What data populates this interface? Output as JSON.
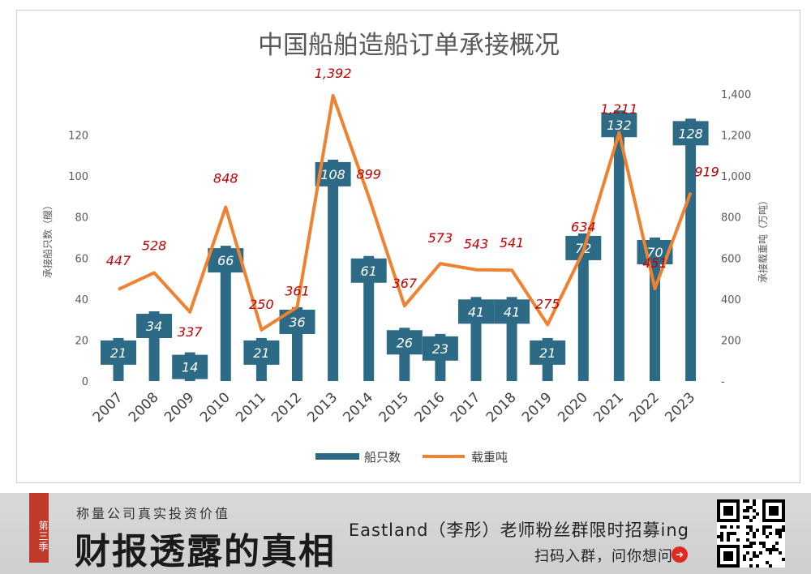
{
  "chart_data": {
    "type": "bar+line",
    "title": "中国船舶造船订单承接概况",
    "categories": [
      "2007",
      "2008",
      "2009",
      "2010",
      "2011",
      "2012",
      "2013",
      "2014",
      "2015",
      "2016",
      "2017",
      "2018",
      "2019",
      "2020",
      "2021",
      "2022",
      "2023"
    ],
    "series": [
      {
        "name": "船只数",
        "type": "bar",
        "axis": "left",
        "color": "#2d6a86",
        "values": [
          21,
          34,
          14,
          66,
          21,
          36,
          108,
          61,
          26,
          23,
          41,
          41,
          21,
          72,
          132,
          70,
          128
        ]
      },
      {
        "name": "载重吨",
        "type": "line",
        "axis": "right",
        "color": "#f0812f",
        "values": [
          447,
          528,
          337,
          848,
          250,
          361,
          1392,
          899,
          367,
          573,
          543,
          541,
          275,
          634,
          1211,
          451,
          919
        ]
      }
    ],
    "left_axis": {
      "label": "承接船只数（艘）",
      "ylim": [
        0,
        140
      ],
      "ticks": [
        0,
        20,
        40,
        60,
        80,
        100,
        120
      ]
    },
    "right_axis": {
      "label": "承接载重吨（万吨）",
      "ylim": [
        0,
        1400
      ],
      "ticks": [
        "-",
        "200",
        "400",
        "600",
        "800",
        "1,000",
        "1,200",
        "1,400"
      ]
    },
    "line_labels": [
      "447",
      "528",
      "337",
      "848",
      "250",
      "361",
      "1,392",
      "899",
      "367",
      "573",
      "543",
      "541",
      "275",
      "634",
      "1,211",
      "451",
      "919"
    ],
    "legend_position": "bottom",
    "grid": false
  },
  "banner": {
    "season_tag": "第三季",
    "subtitle": "称量公司真实投资价值",
    "main_title": "财报透露的真相",
    "promo_line1": "Eastland（李彤）老师粉丝群限时招募ing",
    "promo_line2": "扫码入群，问你想问",
    "arrow_icon": "arrow-right-circle-icon",
    "qr_icon": "qr-code-icon"
  }
}
